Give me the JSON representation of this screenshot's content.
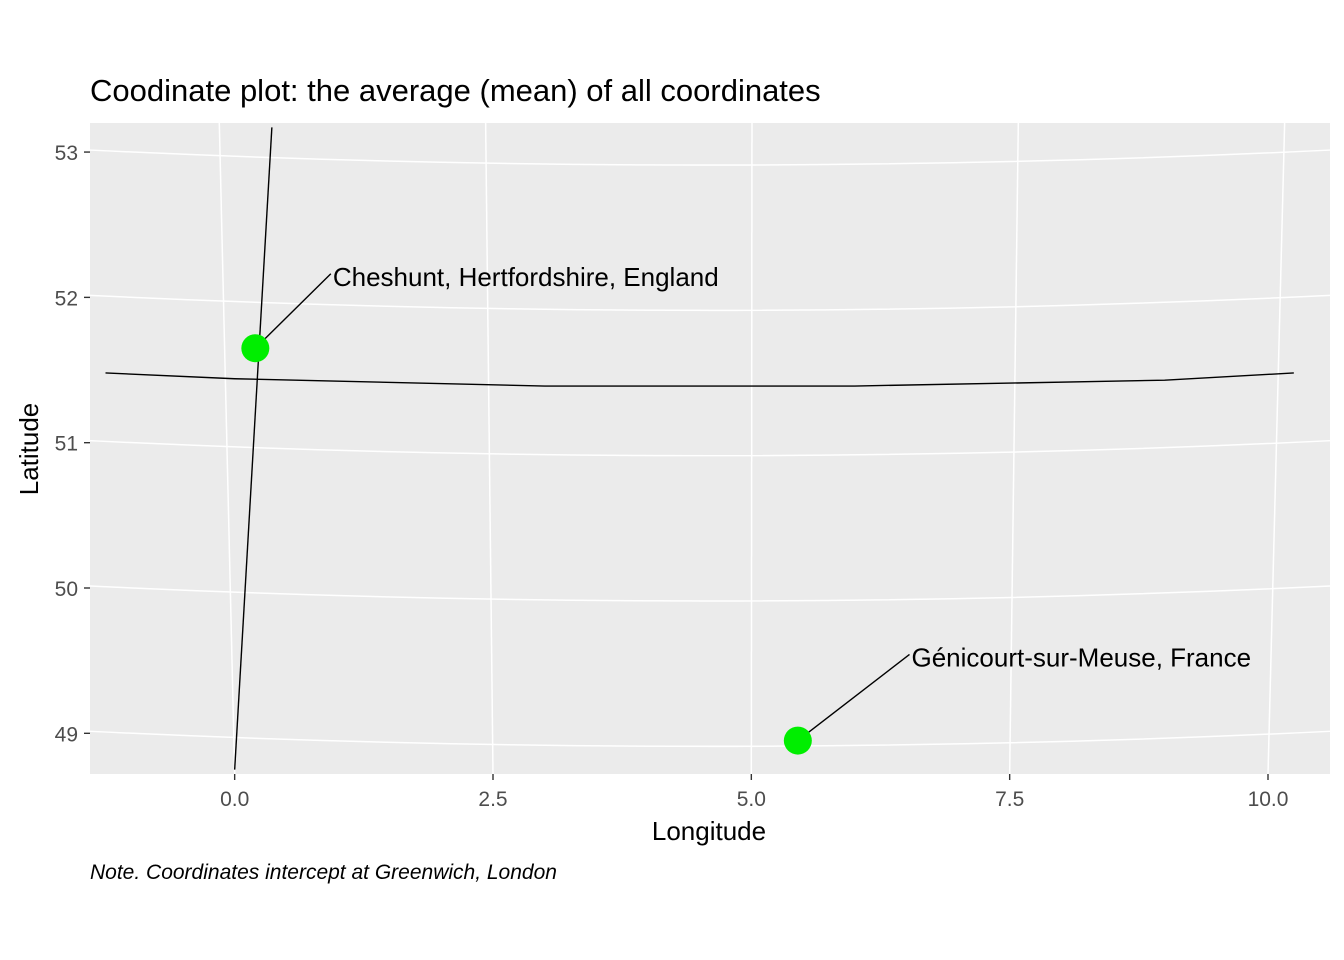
{
  "chart_data": {
    "type": "scatter",
    "title": "Coodinate plot: the average (mean) of all coordinates",
    "xlabel": "Longitude",
    "ylabel": "Latitude",
    "caption": "Note. Coordinates intercept at Greenwich, London",
    "xlim": [
      -1.4,
      10.6
    ],
    "ylim": [
      48.72,
      53.2
    ],
    "x_ticks": [
      0.0,
      2.5,
      5.0,
      7.5,
      10.0
    ],
    "x_tick_labels": [
      "0.0",
      "2.5",
      "5.0",
      "7.5",
      "10.0"
    ],
    "y_ticks": [
      49,
      50,
      51,
      52,
      53
    ],
    "y_tick_labels": [
      "49",
      "50",
      "51",
      "52",
      "53"
    ],
    "grid": true,
    "panel_background": "#ebebeb",
    "grid_color": "#ffffff",
    "point_color": "#00ee00",
    "points": [
      {
        "label": "Cheshunt, Hertfordshire, England",
        "x": 0.2,
        "y": 51.65,
        "label_x": 0.95,
        "label_y": 52.08
      },
      {
        "label": "Génicourt-sur-Meuse, France",
        "x": 5.45,
        "y": 48.95,
        "label_x": 6.55,
        "label_y": 49.46
      }
    ],
    "reference_lines": {
      "meridian": [
        [
          0.0,
          48.75
        ],
        [
          0.36,
          53.17
        ]
      ],
      "parallel": [
        [
          -1.25,
          51.48
        ],
        [
          0.0,
          51.44
        ],
        [
          3.0,
          51.39
        ],
        [
          6.0,
          51.39
        ],
        [
          9.0,
          51.43
        ],
        [
          10.25,
          51.48
        ]
      ]
    }
  }
}
